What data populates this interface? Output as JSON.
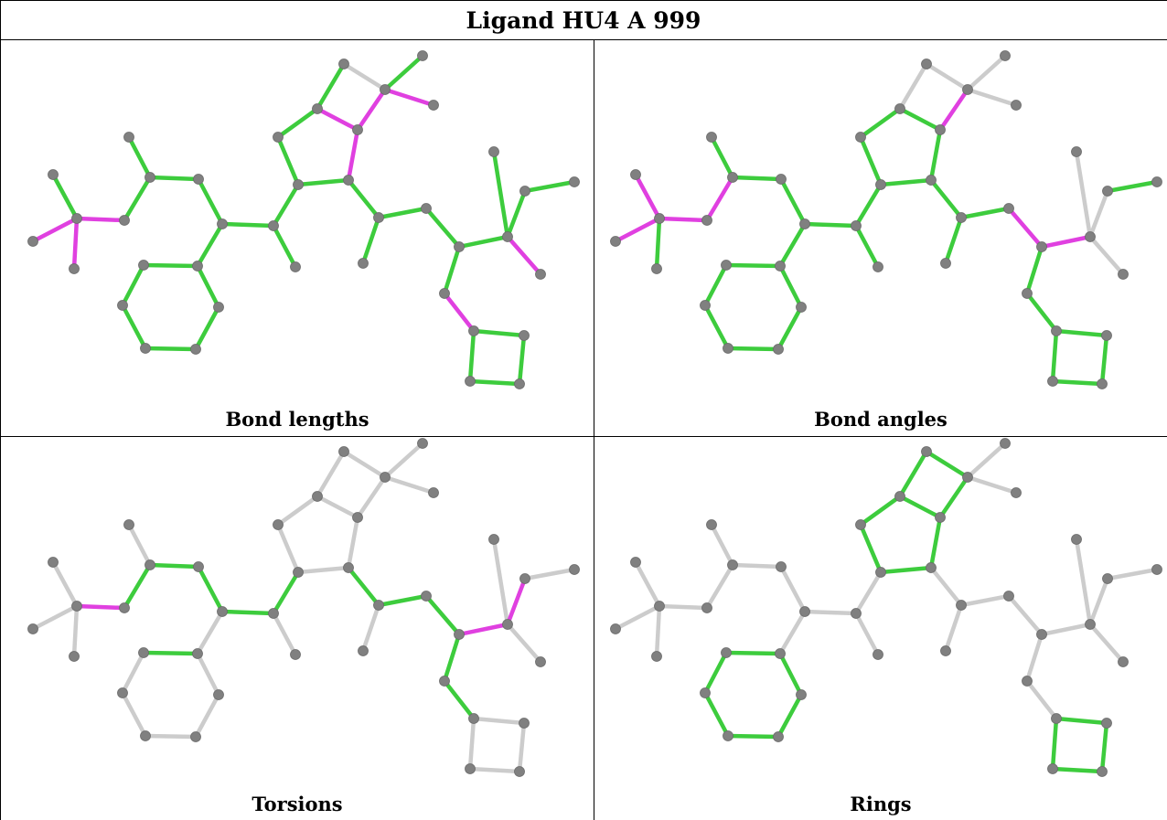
{
  "title": "Ligand HU4 A 999",
  "panels": [
    {
      "caption": "Bond lengths"
    },
    {
      "caption": "Bond angles"
    },
    {
      "caption": "Torsions"
    },
    {
      "caption": "Rings"
    }
  ],
  "colors": {
    "pass": "#3dcc3d",
    "outlier": "#e040e0",
    "unassessed": "#cccccc",
    "atom": "#808080"
  }
}
